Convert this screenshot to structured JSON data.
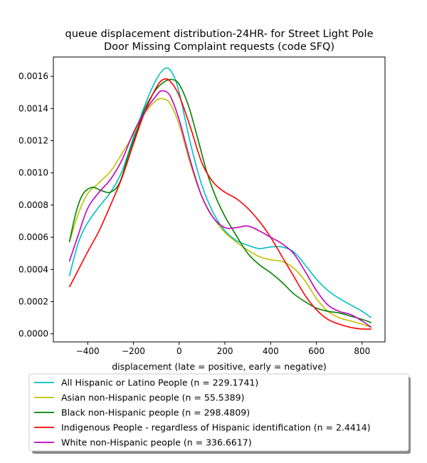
{
  "chart_data": {
    "type": "line",
    "title_lines": [
      "queue displacement distribution-24HR-  for Street Light Pole",
      "Door Missing Complaint  requests (code SFQ)"
    ],
    "xlabel": "displacement (late = positive, early = negative)",
    "ylabel": "",
    "xlim": [
      -550,
      900
    ],
    "ylim": [
      -5e-05,
      0.00172
    ],
    "x_ticks": [
      -400,
      -200,
      0,
      200,
      400,
      600,
      800
    ],
    "x_tick_labels": [
      "−400",
      "−200",
      "0",
      "200",
      "400",
      "600",
      "800"
    ],
    "y_ticks": [
      0,
      0.0002,
      0.0004,
      0.0006,
      0.0008,
      0.001,
      0.0012,
      0.0014,
      0.0016
    ],
    "y_tick_labels": [
      "0.0000",
      "0.0002",
      "0.0004",
      "0.0006",
      "0.0008",
      "0.0010",
      "0.0012",
      "0.0014",
      "0.0016"
    ],
    "grid": false,
    "legend_position": "below-chart",
    "series": [
      {
        "name": "All Hispanic or Latino People (n = 229.1741)",
        "color": "#00bfbf",
        "points": [
          [
            -480,
            0.00036
          ],
          [
            -440,
            0.00057
          ],
          [
            -400,
            0.00069
          ],
          [
            -350,
            0.00079
          ],
          [
            -300,
            0.00088
          ],
          [
            -250,
            0.00101
          ],
          [
            -200,
            0.00122
          ],
          [
            -150,
            0.00142
          ],
          [
            -100,
            0.00158
          ],
          [
            -60,
            0.00165
          ],
          [
            -30,
            0.00162
          ],
          [
            0,
            0.0015
          ],
          [
            50,
            0.00118
          ],
          [
            100,
            0.00092
          ],
          [
            150,
            0.00075
          ],
          [
            200,
            0.00064
          ],
          [
            250,
            0.00058
          ],
          [
            300,
            0.00055
          ],
          [
            350,
            0.00053
          ],
          [
            400,
            0.00054
          ],
          [
            450,
            0.00054
          ],
          [
            500,
            0.00051
          ],
          [
            550,
            0.00043
          ],
          [
            600,
            0.00034
          ],
          [
            650,
            0.00027
          ],
          [
            700,
            0.00022
          ],
          [
            750,
            0.00018
          ],
          [
            800,
            0.00014
          ],
          [
            840,
            0.0001
          ]
        ]
      },
      {
        "name": "Asian non-Hispanic people (n = 55.5389)",
        "color": "#bfbf00",
        "points": [
          [
            -480,
            0.00057
          ],
          [
            -440,
            0.00075
          ],
          [
            -400,
            0.00087
          ],
          [
            -350,
            0.00094
          ],
          [
            -300,
            0.00101
          ],
          [
            -250,
            0.00112
          ],
          [
            -200,
            0.00124
          ],
          [
            -150,
            0.00137
          ],
          [
            -100,
            0.00145
          ],
          [
            -70,
            0.00146
          ],
          [
            -40,
            0.00143
          ],
          [
            0,
            0.0013
          ],
          [
            50,
            0.00105
          ],
          [
            100,
            0.00085
          ],
          [
            150,
            0.00072
          ],
          [
            200,
            0.00063
          ],
          [
            250,
            0.00057
          ],
          [
            300,
            0.00052
          ],
          [
            350,
            0.00048
          ],
          [
            400,
            0.00046
          ],
          [
            450,
            0.00045
          ],
          [
            500,
            0.00041
          ],
          [
            550,
            0.00033
          ],
          [
            600,
            0.00022
          ],
          [
            650,
            0.00014
          ],
          [
            700,
            0.0001
          ],
          [
            750,
            8e-05
          ],
          [
            800,
            6e-05
          ],
          [
            840,
            4e-05
          ]
        ]
      },
      {
        "name": "Black non-Hispanic people (n = 298.4809)",
        "color": "#008000",
        "points": [
          [
            -480,
            0.00057
          ],
          [
            -450,
            0.00076
          ],
          [
            -420,
            0.00087
          ],
          [
            -380,
            0.00091
          ],
          [
            -340,
            0.00089
          ],
          [
            -300,
            0.00088
          ],
          [
            -260,
            0.00094
          ],
          [
            -220,
            0.00112
          ],
          [
            -180,
            0.00128
          ],
          [
            -150,
            0.0014
          ],
          [
            -100,
            0.00152
          ],
          [
            -60,
            0.00157
          ],
          [
            -30,
            0.00158
          ],
          [
            0,
            0.00155
          ],
          [
            40,
            0.00142
          ],
          [
            80,
            0.00122
          ],
          [
            120,
            0.00101
          ],
          [
            160,
            0.00085
          ],
          [
            200,
            0.00073
          ],
          [
            250,
            0.00061
          ],
          [
            300,
            0.0005
          ],
          [
            350,
            0.00043
          ],
          [
            400,
            0.00038
          ],
          [
            450,
            0.00032
          ],
          [
            500,
            0.00025
          ],
          [
            550,
            0.0002
          ],
          [
            600,
            0.00016
          ],
          [
            650,
            0.00014
          ],
          [
            700,
            0.00013
          ],
          [
            750,
            0.00011
          ],
          [
            800,
            9e-05
          ],
          [
            840,
            7e-05
          ]
        ]
      },
      {
        "name": "Indigenous People - regardless of Hispanic identification (n = 2.4414)",
        "color": "#ff0000",
        "points": [
          [
            -480,
            0.00029
          ],
          [
            -440,
            0.0004
          ],
          [
            -400,
            0.00051
          ],
          [
            -350,
            0.00064
          ],
          [
            -300,
            0.0008
          ],
          [
            -250,
            0.00097
          ],
          [
            -200,
            0.00118
          ],
          [
            -150,
            0.00138
          ],
          [
            -100,
            0.00153
          ],
          [
            -70,
            0.00158
          ],
          [
            -40,
            0.00157
          ],
          [
            0,
            0.00148
          ],
          [
            50,
            0.00128
          ],
          [
            100,
            0.00106
          ],
          [
            150,
            0.00094
          ],
          [
            200,
            0.00088
          ],
          [
            250,
            0.00084
          ],
          [
            300,
            0.00078
          ],
          [
            350,
            0.0007
          ],
          [
            400,
            0.0006
          ],
          [
            450,
            0.00048
          ],
          [
            500,
            0.00036
          ],
          [
            550,
            0.00024
          ],
          [
            600,
            0.00015
          ],
          [
            650,
            9e-05
          ],
          [
            700,
            6e-05
          ],
          [
            750,
            4e-05
          ],
          [
            800,
            3e-05
          ],
          [
            840,
            3e-05
          ]
        ]
      },
      {
        "name": "White non-Hispanic people (n = 336.6617)",
        "color": "#bf00bf",
        "points": [
          [
            -480,
            0.00045
          ],
          [
            -440,
            0.00062
          ],
          [
            -400,
            0.00078
          ],
          [
            -350,
            0.00088
          ],
          [
            -300,
            0.00096
          ],
          [
            -250,
            0.00108
          ],
          [
            -200,
            0.00125
          ],
          [
            -150,
            0.00138
          ],
          [
            -100,
            0.00148
          ],
          [
            -75,
            0.00151
          ],
          [
            -40,
            0.00148
          ],
          [
            0,
            0.00133
          ],
          [
            50,
            0.00107
          ],
          [
            100,
            0.00085
          ],
          [
            150,
            0.00072
          ],
          [
            200,
            0.00066
          ],
          [
            250,
            0.00066
          ],
          [
            300,
            0.00067
          ],
          [
            350,
            0.00064
          ],
          [
            400,
            0.0006
          ],
          [
            450,
            0.00056
          ],
          [
            500,
            0.0005
          ],
          [
            550,
            0.00039
          ],
          [
            600,
            0.00027
          ],
          [
            650,
            0.00018
          ],
          [
            700,
            0.00014
          ],
          [
            750,
            0.00012
          ],
          [
            800,
            8e-05
          ],
          [
            840,
            4e-05
          ]
        ]
      }
    ]
  }
}
